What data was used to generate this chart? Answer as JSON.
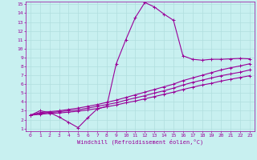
{
  "xlabel": "Windchill (Refroidissement éolien,°C)",
  "bg_color": "#c8f0f0",
  "line_color": "#990099",
  "grid_color": "#b0dede",
  "xlim": [
    -0.5,
    23.5
  ],
  "ylim": [
    0.7,
    15.3
  ],
  "xticks": [
    0,
    1,
    2,
    3,
    4,
    5,
    6,
    7,
    8,
    9,
    10,
    11,
    12,
    13,
    14,
    15,
    16,
    17,
    18,
    19,
    20,
    21,
    22,
    23
  ],
  "yticks": [
    1,
    2,
    3,
    4,
    5,
    6,
    7,
    8,
    9,
    10,
    11,
    12,
    13,
    14,
    15
  ],
  "line1_x": [
    0,
    1,
    2,
    3,
    4,
    5,
    6,
    7,
    8,
    9,
    10,
    11,
    12,
    13,
    14,
    15,
    16,
    17,
    18,
    19,
    20,
    21,
    22,
    23
  ],
  "line1_y": [
    2.5,
    3.0,
    2.8,
    2.3,
    1.7,
    1.1,
    2.2,
    3.2,
    3.5,
    8.3,
    11.0,
    13.5,
    15.2,
    14.7,
    13.9,
    13.2,
    9.2,
    8.8,
    8.7,
    8.8,
    8.8,
    8.85,
    8.9,
    8.85
  ],
  "line2_x": [
    0,
    1,
    2,
    3,
    4,
    5,
    6,
    7,
    8,
    9,
    10,
    11,
    12,
    13,
    14,
    15,
    16,
    17,
    18,
    19,
    20,
    21,
    22,
    23
  ],
  "line2_y": [
    2.5,
    2.8,
    2.9,
    3.0,
    3.15,
    3.3,
    3.5,
    3.7,
    3.95,
    4.2,
    4.5,
    4.8,
    5.1,
    5.4,
    5.7,
    6.0,
    6.4,
    6.7,
    7.0,
    7.3,
    7.6,
    7.85,
    8.05,
    8.3
  ],
  "line3_x": [
    0,
    1,
    2,
    3,
    4,
    5,
    6,
    7,
    8,
    9,
    10,
    11,
    12,
    13,
    14,
    15,
    16,
    17,
    18,
    19,
    20,
    21,
    22,
    23
  ],
  "line3_y": [
    2.5,
    2.7,
    2.8,
    2.9,
    3.0,
    3.1,
    3.3,
    3.5,
    3.7,
    3.9,
    4.2,
    4.45,
    4.7,
    5.0,
    5.25,
    5.55,
    5.9,
    6.2,
    6.45,
    6.7,
    6.95,
    7.15,
    7.35,
    7.6
  ],
  "line4_x": [
    0,
    1,
    2,
    3,
    4,
    5,
    6,
    7,
    8,
    9,
    10,
    11,
    12,
    13,
    14,
    15,
    16,
    17,
    18,
    19,
    20,
    21,
    22,
    23
  ],
  "line4_y": [
    2.5,
    2.6,
    2.7,
    2.75,
    2.85,
    2.95,
    3.1,
    3.25,
    3.45,
    3.65,
    3.9,
    4.1,
    4.35,
    4.6,
    4.85,
    5.1,
    5.4,
    5.65,
    5.9,
    6.1,
    6.35,
    6.55,
    6.75,
    6.95
  ]
}
